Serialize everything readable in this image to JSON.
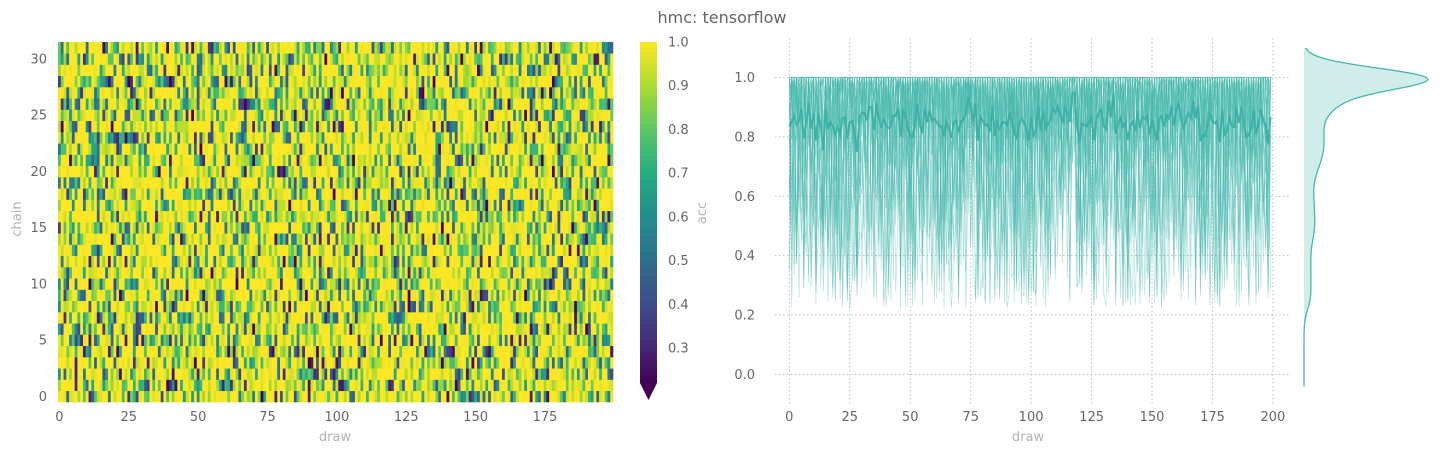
{
  "figure": {
    "title": "hmc: tensorflow"
  },
  "chart_data": [
    {
      "type": "heatmap",
      "xlabel": "draw",
      "ylabel": "chain",
      "x_range": [
        0,
        199
      ],
      "y_range": [
        0,
        31
      ],
      "n_draws": 200,
      "n_chains": 32,
      "x_ticks": [
        "0",
        "25",
        "50",
        "75",
        "100",
        "125",
        "150",
        "175"
      ],
      "y_ticks": [
        "0",
        "5",
        "10",
        "15",
        "20",
        "25",
        "30"
      ],
      "value_range": [
        0.22,
        1.0
      ],
      "colormap": "viridis",
      "colorbar": {
        "label": "acc",
        "ticks": [
          "0.3",
          "0.4",
          "0.5",
          "0.6",
          "0.7",
          "0.8",
          "0.9",
          "1.0"
        ],
        "extend": "min"
      },
      "note_values": "32 chains x 200 draws of acceptance probability; most cells near 1.0 with frequent lower values down to about 0.22"
    },
    {
      "type": "line",
      "xlabel": "draw",
      "ylabel": "",
      "xlim": [
        -8,
        205
      ],
      "ylim": [
        -0.1,
        1.12
      ],
      "x_ticks": [
        "0",
        "25",
        "50",
        "75",
        "100",
        "125",
        "150",
        "175",
        "200"
      ],
      "y_ticks": [
        "0.0",
        "0.2",
        "0.4",
        "0.6",
        "0.8",
        "1.0"
      ],
      "color": "#45b8ad",
      "grid": true,
      "series": [
        {
          "role": "per-chain acceptance traces",
          "count": 32,
          "min_typical": 0.2,
          "max": 1.0
        },
        {
          "role": "mean across chains",
          "approx_level": 0.75,
          "range": [
            0.71,
            0.79
          ]
        }
      ],
      "marginal_density": {
        "mode": 1.0,
        "secondary_mass": [
          0.2,
          0.8
        ]
      }
    }
  ]
}
